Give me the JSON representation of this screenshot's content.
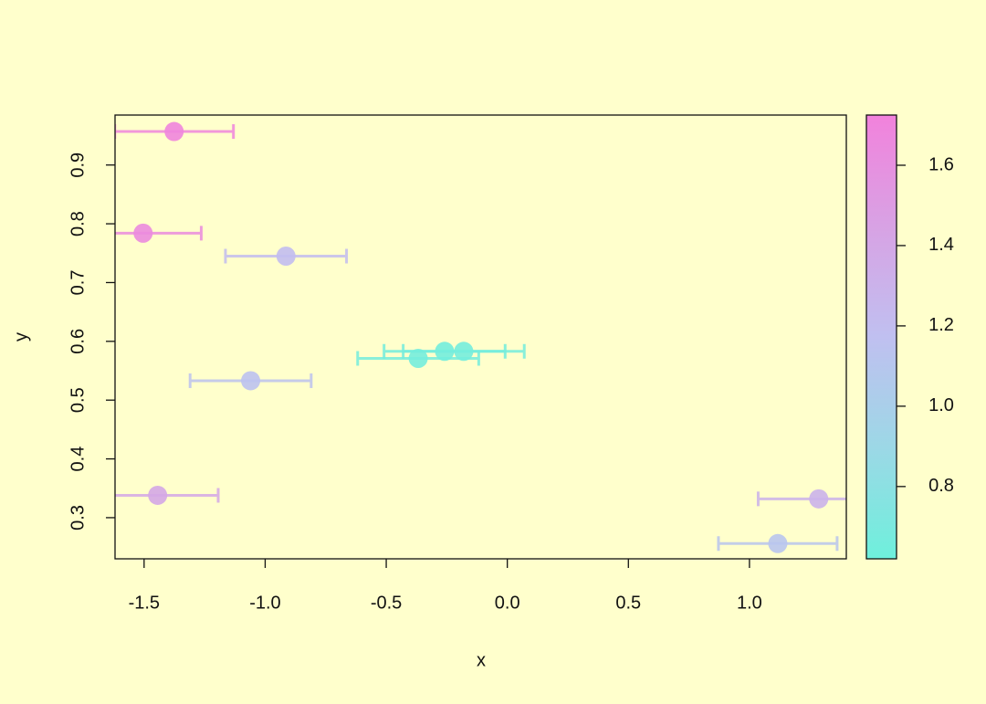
{
  "chart_data": {
    "type": "scatter",
    "x_label": "x",
    "y_label": "y",
    "x": [
      -1.376,
      -1.504,
      -0.914,
      -1.06,
      -1.444,
      -0.368,
      -0.259,
      -0.18,
      1.286,
      1.117
    ],
    "y": [
      0.957,
      0.784,
      0.745,
      0.533,
      0.338,
      0.571,
      0.583,
      0.583,
      0.332,
      0.256
    ],
    "xerr": [
      0.245,
      0.24,
      0.25,
      0.25,
      0.25,
      0.25,
      0.25,
      0.25,
      0.25,
      0.245
    ],
    "color_values": [
      1.7,
      1.65,
      1.2,
      1.15,
      1.4,
      0.66,
      0.65,
      0.66,
      1.3,
      1.12
    ],
    "colormap": [
      "#6ef0dc",
      "#9cd8e6",
      "#c0c0f0",
      "#d8a2e4",
      "#f282dc"
    ],
    "xlim": [
      -1.62,
      1.4
    ],
    "xticks": [
      -1.5,
      {
        "value": -1,
        "label": "-1.0"
      },
      -0.5,
      {
        "value": 0,
        "label": "0.0"
      },
      0.5,
      {
        "value": 1,
        "label": "1.0"
      }
    ],
    "ylim": [
      0.23,
      0.985
    ],
    "yticks": [
      0.3,
      0.4,
      0.5,
      0.6,
      0.7,
      0.8,
      0.9
    ],
    "colorbar": {
      "lim": [
        0.62,
        1.725
      ],
      "ticks": [
        0.8,
        {
          "value": 1,
          "label": "1.0"
        },
        1.2,
        1.4,
        1.6
      ]
    }
  }
}
